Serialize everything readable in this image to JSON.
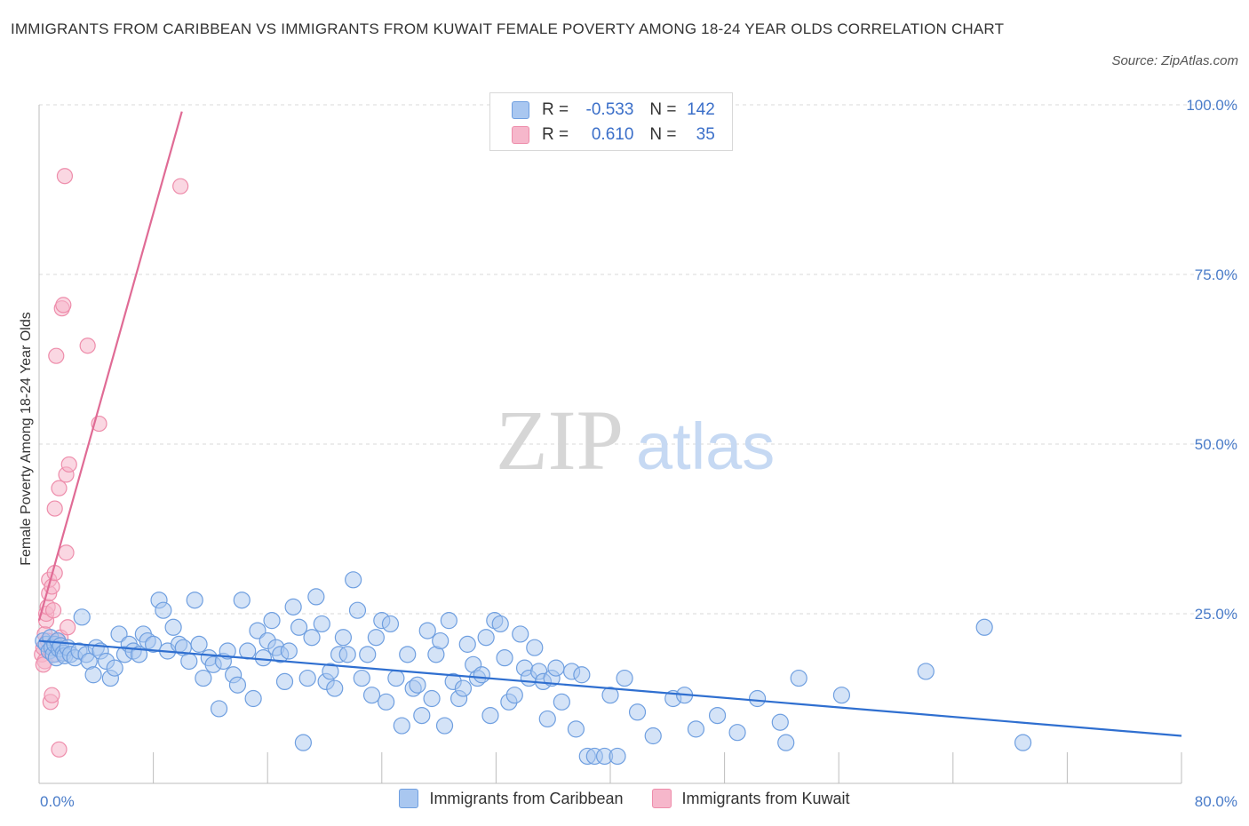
{
  "title": "IMMIGRANTS FROM CARIBBEAN VS IMMIGRANTS FROM KUWAIT FEMALE POVERTY AMONG 18-24 YEAR OLDS CORRELATION CHART",
  "source": "Source: ZipAtlas.com",
  "watermark": {
    "zip": "ZIP",
    "atlas": "atlas"
  },
  "legend": {
    "rows": [
      {
        "r_label": "R =",
        "r_value": "-0.533",
        "n_label": "N =",
        "n_value": "142"
      },
      {
        "r_label": "R =",
        "r_value": "0.610",
        "n_label": "N =",
        "n_value": "35"
      }
    ]
  },
  "bottom_legend": [
    "Immigrants from Caribbean",
    "Immigrants from Kuwait"
  ],
  "colors": {
    "caribbean_fill": "#a9c7f0",
    "caribbean_stroke": "#6f9fe0",
    "caribbean_line": "#2f6fd0",
    "kuwait_fill": "#f6b7cb",
    "kuwait_stroke": "#ee8dab",
    "kuwait_line": "#e06b95",
    "tick_text": "#4a7cc9",
    "grid": "#d9d9d9"
  },
  "chart_data": {
    "type": "scatter",
    "ylabel": "Female Poverty Among 18-24 Year Olds",
    "xlim": [
      0,
      80
    ],
    "ylim": [
      0,
      100
    ],
    "x_tick_labels": [
      "0.0%",
      "80.0%"
    ],
    "y_ticks": [
      25,
      50,
      75,
      100
    ],
    "y_tick_labels": [
      "25.0%",
      "50.0%",
      "75.0%",
      "100.0%"
    ],
    "grid": true,
    "series": [
      {
        "name": "Immigrants from Caribbean",
        "R": -0.533,
        "N": 142,
        "trend": {
          "x": [
            0,
            80
          ],
          "y": [
            21.0,
            7.0
          ]
        },
        "points": [
          [
            0.3,
            21.0
          ],
          [
            0.5,
            20.5
          ],
          [
            0.7,
            19.5
          ],
          [
            0.8,
            21.5
          ],
          [
            0.9,
            20.0
          ],
          [
            1.0,
            19.0
          ],
          [
            1.1,
            20.5
          ],
          [
            1.2,
            18.5
          ],
          [
            1.3,
            21.0
          ],
          [
            1.4,
            19.8
          ],
          [
            1.5,
            20.3
          ],
          [
            1.7,
            19.2
          ],
          [
            1.8,
            18.8
          ],
          [
            2.0,
            20.0
          ],
          [
            2.2,
            19.0
          ],
          [
            2.5,
            18.5
          ],
          [
            2.8,
            19.5
          ],
          [
            3.0,
            24.5
          ],
          [
            3.3,
            19.0
          ],
          [
            3.5,
            18.0
          ],
          [
            3.8,
            16.0
          ],
          [
            4.0,
            20.0
          ],
          [
            4.3,
            19.5
          ],
          [
            4.7,
            18.0
          ],
          [
            5.0,
            15.5
          ],
          [
            5.3,
            17.0
          ],
          [
            5.6,
            22.0
          ],
          [
            6.0,
            19.0
          ],
          [
            6.3,
            20.5
          ],
          [
            6.6,
            19.5
          ],
          [
            7.0,
            19.0
          ],
          [
            7.3,
            22.0
          ],
          [
            7.6,
            21.0
          ],
          [
            8.0,
            20.5
          ],
          [
            8.4,
            27.0
          ],
          [
            8.7,
            25.5
          ],
          [
            9.0,
            19.5
          ],
          [
            9.4,
            23.0
          ],
          [
            9.8,
            20.5
          ],
          [
            10.1,
            20.0
          ],
          [
            10.5,
            18.0
          ],
          [
            10.9,
            27.0
          ],
          [
            11.2,
            20.5
          ],
          [
            11.5,
            15.5
          ],
          [
            11.9,
            18.5
          ],
          [
            12.2,
            17.5
          ],
          [
            12.6,
            11.0
          ],
          [
            12.9,
            18.0
          ],
          [
            13.2,
            19.5
          ],
          [
            13.6,
            16.0
          ],
          [
            13.9,
            14.5
          ],
          [
            14.2,
            27.0
          ],
          [
            14.6,
            19.5
          ],
          [
            15.0,
            12.5
          ],
          [
            15.3,
            22.5
          ],
          [
            15.7,
            18.5
          ],
          [
            16.0,
            21.0
          ],
          [
            16.3,
            24.0
          ],
          [
            16.6,
            20.0
          ],
          [
            16.9,
            19.0
          ],
          [
            17.2,
            15.0
          ],
          [
            17.5,
            19.5
          ],
          [
            17.8,
            26.0
          ],
          [
            18.2,
            23.0
          ],
          [
            18.5,
            6.0
          ],
          [
            18.8,
            15.5
          ],
          [
            19.1,
            21.5
          ],
          [
            19.4,
            27.5
          ],
          [
            19.8,
            23.5
          ],
          [
            20.1,
            15.0
          ],
          [
            20.4,
            16.5
          ],
          [
            20.7,
            14.0
          ],
          [
            21.0,
            19.0
          ],
          [
            21.3,
            21.5
          ],
          [
            21.6,
            19.0
          ],
          [
            22.0,
            30.0
          ],
          [
            22.3,
            25.5
          ],
          [
            22.6,
            15.5
          ],
          [
            23.0,
            19.0
          ],
          [
            23.3,
            13.0
          ],
          [
            23.6,
            21.5
          ],
          [
            24.0,
            24.0
          ],
          [
            24.3,
            12.0
          ],
          [
            24.6,
            23.5
          ],
          [
            25.0,
            15.5
          ],
          [
            25.4,
            8.5
          ],
          [
            25.8,
            19.0
          ],
          [
            26.2,
            14.0
          ],
          [
            26.5,
            14.5
          ],
          [
            26.8,
            10.0
          ],
          [
            27.2,
            22.5
          ],
          [
            27.5,
            12.5
          ],
          [
            27.8,
            19.0
          ],
          [
            28.1,
            21.0
          ],
          [
            28.4,
            8.5
          ],
          [
            28.7,
            24.0
          ],
          [
            29.0,
            15.0
          ],
          [
            29.4,
            12.5
          ],
          [
            29.7,
            14.0
          ],
          [
            30.0,
            20.5
          ],
          [
            30.4,
            17.5
          ],
          [
            30.7,
            15.5
          ],
          [
            31.0,
            16.0
          ],
          [
            31.3,
            21.5
          ],
          [
            31.6,
            10.0
          ],
          [
            31.9,
            24.0
          ],
          [
            32.3,
            23.5
          ],
          [
            32.6,
            18.5
          ],
          [
            32.9,
            12.0
          ],
          [
            33.3,
            13.0
          ],
          [
            33.7,
            22.0
          ],
          [
            34.0,
            17.0
          ],
          [
            34.3,
            15.5
          ],
          [
            34.7,
            20.0
          ],
          [
            35.0,
            16.5
          ],
          [
            35.3,
            15.0
          ],
          [
            35.6,
            9.5
          ],
          [
            35.9,
            15.5
          ],
          [
            36.2,
            17.0
          ],
          [
            36.6,
            12.0
          ],
          [
            37.3,
            16.5
          ],
          [
            37.6,
            8.0
          ],
          [
            38.0,
            16.0
          ],
          [
            38.4,
            4.0
          ],
          [
            38.9,
            4.0
          ],
          [
            39.6,
            4.0
          ],
          [
            40.0,
            13.0
          ],
          [
            40.5,
            4.0
          ],
          [
            41.0,
            15.5
          ],
          [
            41.9,
            10.5
          ],
          [
            43.0,
            7.0
          ],
          [
            44.4,
            12.5
          ],
          [
            45.2,
            13.0
          ],
          [
            46.0,
            8.0
          ],
          [
            47.5,
            10.0
          ],
          [
            48.9,
            7.5
          ],
          [
            50.3,
            12.5
          ],
          [
            51.9,
            9.0
          ],
          [
            52.3,
            6.0
          ],
          [
            53.2,
            15.5
          ],
          [
            56.2,
            13.0
          ],
          [
            62.1,
            16.5
          ],
          [
            66.2,
            23.0
          ],
          [
            68.9,
            6.0
          ]
        ]
      },
      {
        "name": "Immigrants from Kuwait",
        "R": 0.61,
        "N": 35,
        "trend": {
          "x": [
            0,
            10
          ],
          "y": [
            24.0,
            99.0
          ]
        },
        "points": [
          [
            0.2,
            19.0
          ],
          [
            0.3,
            20.0
          ],
          [
            0.4,
            18.0
          ],
          [
            0.4,
            22.0
          ],
          [
            0.5,
            24.0
          ],
          [
            0.5,
            25.0
          ],
          [
            0.6,
            26.0
          ],
          [
            0.6,
            21.0
          ],
          [
            0.7,
            28.0
          ],
          [
            0.7,
            30.0
          ],
          [
            0.8,
            19.5
          ],
          [
            0.8,
            12.0
          ],
          [
            0.9,
            13.0
          ],
          [
            0.9,
            29.0
          ],
          [
            1.0,
            25.5
          ],
          [
            1.0,
            20.0
          ],
          [
            1.1,
            31.0
          ],
          [
            1.1,
            40.5
          ],
          [
            1.2,
            19.0
          ],
          [
            1.2,
            63.0
          ],
          [
            1.3,
            21.0
          ],
          [
            1.4,
            43.5
          ],
          [
            1.4,
            5.0
          ],
          [
            1.5,
            21.5
          ],
          [
            1.6,
            70.0
          ],
          [
            1.7,
            70.5
          ],
          [
            1.8,
            89.5
          ],
          [
            1.9,
            45.5
          ],
          [
            1.9,
            34.0
          ],
          [
            2.0,
            23.0
          ],
          [
            2.1,
            47.0
          ],
          [
            3.4,
            64.5
          ],
          [
            4.2,
            53.0
          ],
          [
            9.9,
            88.0
          ],
          [
            0.3,
            17.5
          ]
        ]
      }
    ]
  }
}
